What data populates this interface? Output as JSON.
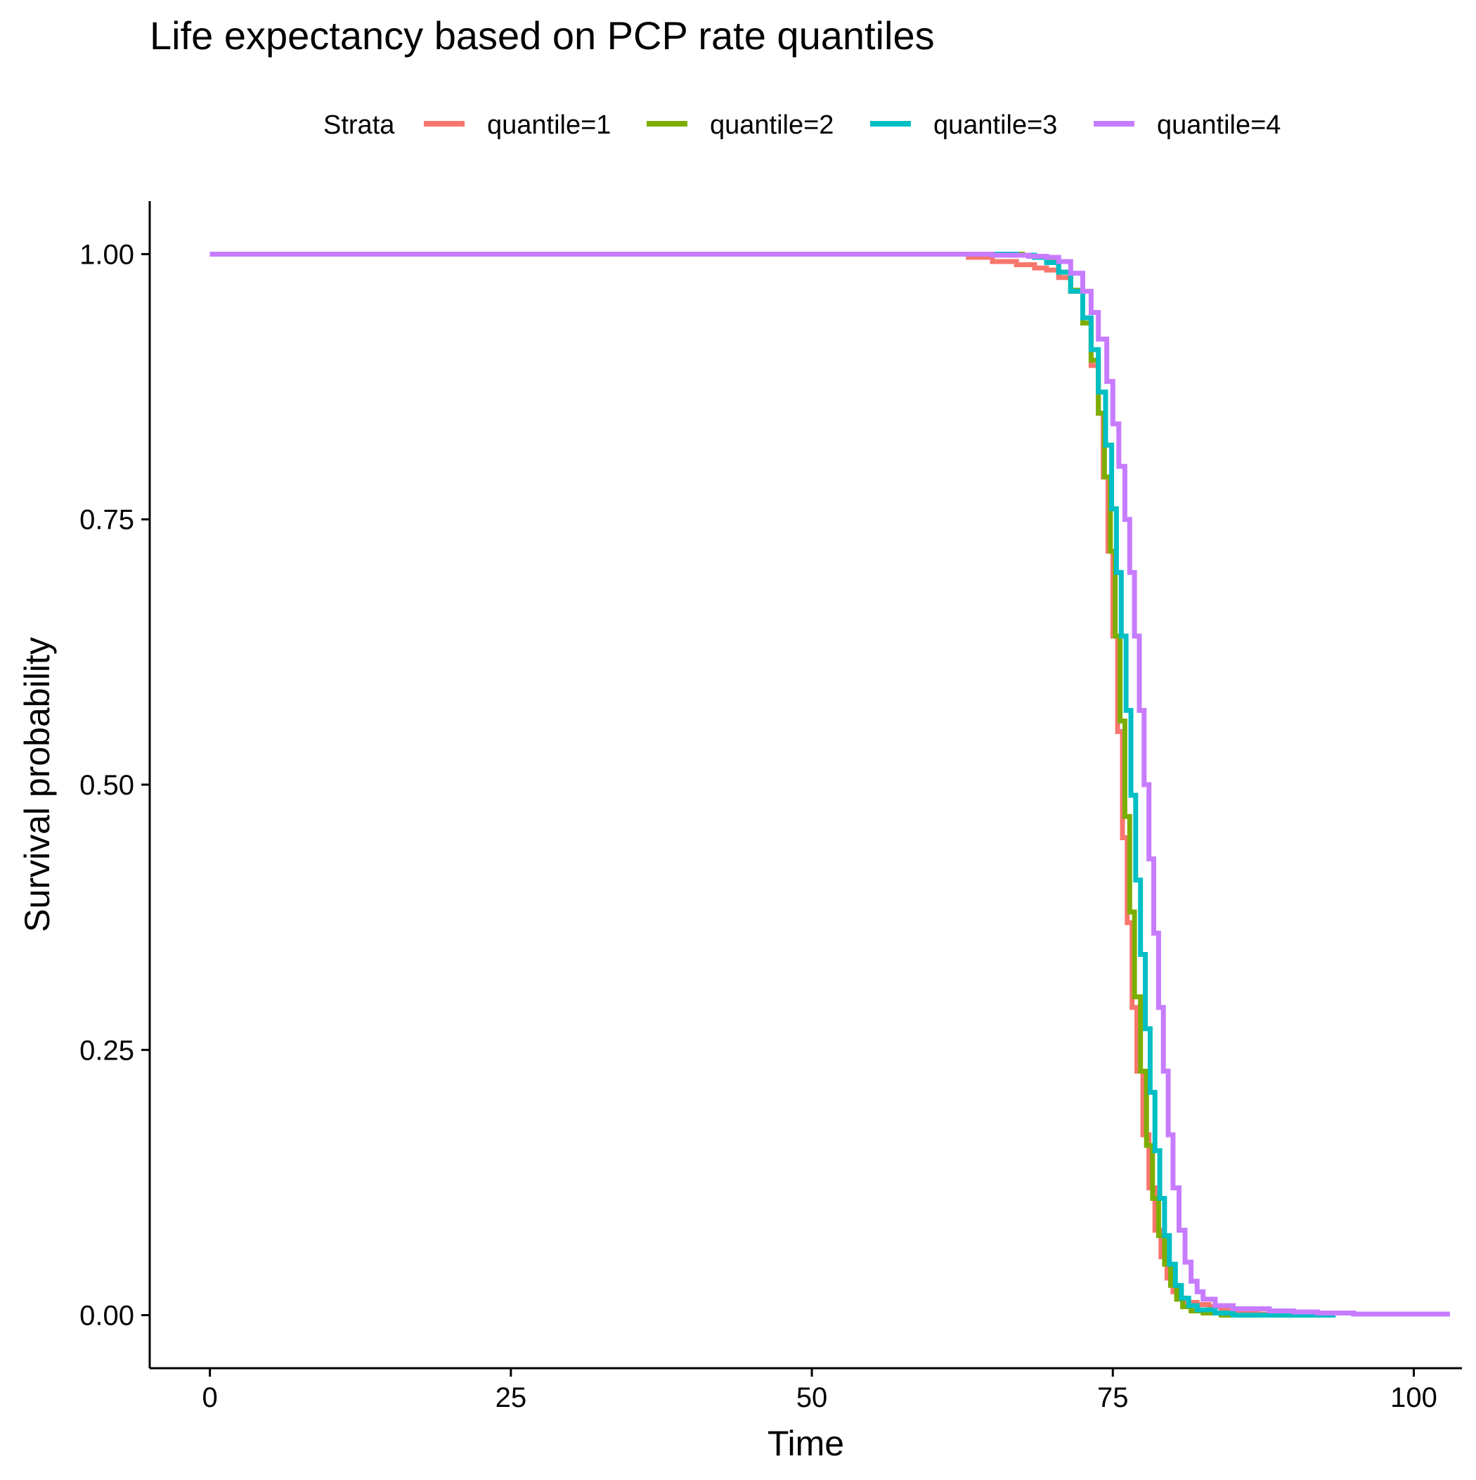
{
  "chart_data": {
    "type": "line",
    "title": "Life expectancy based on PCP rate quantiles",
    "xlabel": "Time",
    "ylabel": "Survival probability",
    "xlim": [
      -5,
      104
    ],
    "ylim": [
      -0.05,
      1.05
    ],
    "x_ticks": [
      "0",
      "25",
      "50",
      "75",
      "100"
    ],
    "x_tick_values": [
      0,
      25,
      50,
      75,
      100
    ],
    "y_ticks": [
      "0.00",
      "0.25",
      "0.50",
      "0.75",
      "1.00"
    ],
    "y_tick_values": [
      0,
      0.25,
      0.5,
      0.75,
      1.0
    ],
    "grid": false,
    "legend": {
      "title": "Strata",
      "position": "top"
    },
    "series": [
      {
        "name": "quantile=1",
        "color": "#F8766D",
        "points": [
          [
            0,
            1.0
          ],
          [
            61,
            1.0
          ],
          [
            63,
            0.997
          ],
          [
            65,
            0.993
          ],
          [
            67,
            0.99
          ],
          [
            68.5,
            0.987
          ],
          [
            69.5,
            0.985
          ],
          [
            70.5,
            0.978
          ],
          [
            71.5,
            0.965
          ],
          [
            72.5,
            0.935
          ],
          [
            73.2,
            0.895
          ],
          [
            73.8,
            0.85
          ],
          [
            74.2,
            0.79
          ],
          [
            74.6,
            0.72
          ],
          [
            75,
            0.64
          ],
          [
            75.4,
            0.55
          ],
          [
            75.8,
            0.45
          ],
          [
            76.2,
            0.37
          ],
          [
            76.6,
            0.29
          ],
          [
            77,
            0.23
          ],
          [
            77.5,
            0.17
          ],
          [
            78,
            0.12
          ],
          [
            78.5,
            0.08
          ],
          [
            79,
            0.055
          ],
          [
            79.5,
            0.035
          ],
          [
            80,
            0.022
          ],
          [
            80.5,
            0.016
          ],
          [
            81,
            0.012
          ],
          [
            82,
            0.01
          ],
          [
            83,
            0.008
          ],
          [
            84,
            0.005
          ],
          [
            85,
            0.003
          ],
          [
            87,
            0.001
          ],
          [
            90,
            0.0
          ],
          [
            93.5,
            0.0
          ]
        ]
      },
      {
        "name": "quantile=2",
        "color": "#7CAE00",
        "points": [
          [
            0,
            1.0
          ],
          [
            66,
            1.0
          ],
          [
            67.5,
            0.999
          ],
          [
            68.5,
            0.997
          ],
          [
            69.5,
            0.993
          ],
          [
            70.5,
            0.983
          ],
          [
            71.5,
            0.966
          ],
          [
            72.5,
            0.935
          ],
          [
            73.2,
            0.9
          ],
          [
            73.8,
            0.85
          ],
          [
            74.3,
            0.79
          ],
          [
            74.8,
            0.72
          ],
          [
            75.2,
            0.64
          ],
          [
            75.6,
            0.56
          ],
          [
            76,
            0.47
          ],
          [
            76.4,
            0.38
          ],
          [
            76.8,
            0.3
          ],
          [
            77.3,
            0.23
          ],
          [
            77.8,
            0.16
          ],
          [
            78.3,
            0.11
          ],
          [
            78.8,
            0.075
          ],
          [
            79.3,
            0.048
          ],
          [
            79.8,
            0.028
          ],
          [
            80.3,
            0.015
          ],
          [
            80.8,
            0.008
          ],
          [
            81.5,
            0.004
          ],
          [
            82.5,
            0.002
          ],
          [
            84,
            0.0
          ],
          [
            86,
            0.0
          ]
        ]
      },
      {
        "name": "quantile=3",
        "color": "#00BFC4",
        "points": [
          [
            0,
            1.0
          ],
          [
            65,
            1.0
          ],
          [
            67,
            0.999
          ],
          [
            68.5,
            0.997
          ],
          [
            69.5,
            0.992
          ],
          [
            70.5,
            0.983
          ],
          [
            71.5,
            0.965
          ],
          [
            72.5,
            0.94
          ],
          [
            73.2,
            0.91
          ],
          [
            73.8,
            0.87
          ],
          [
            74.4,
            0.82
          ],
          [
            74.9,
            0.76
          ],
          [
            75.3,
            0.7
          ],
          [
            75.7,
            0.64
          ],
          [
            76.1,
            0.57
          ],
          [
            76.5,
            0.49
          ],
          [
            76.9,
            0.41
          ],
          [
            77.3,
            0.34
          ],
          [
            77.7,
            0.27
          ],
          [
            78.1,
            0.21
          ],
          [
            78.5,
            0.155
          ],
          [
            78.9,
            0.11
          ],
          [
            79.3,
            0.075
          ],
          [
            79.7,
            0.048
          ],
          [
            80.2,
            0.028
          ],
          [
            80.7,
            0.016
          ],
          [
            81.3,
            0.009
          ],
          [
            82,
            0.005
          ],
          [
            83.5,
            0.002
          ],
          [
            85,
            0.0
          ],
          [
            93.5,
            0.0
          ]
        ]
      },
      {
        "name": "quantile=4",
        "color": "#C77CFF",
        "points": [
          [
            0,
            1.0
          ],
          [
            60,
            1.0
          ],
          [
            65,
            0.999
          ],
          [
            68,
            0.998
          ],
          [
            69.5,
            0.997
          ],
          [
            70.5,
            0.993
          ],
          [
            71.5,
            0.982
          ],
          [
            72.5,
            0.965
          ],
          [
            73.2,
            0.945
          ],
          [
            73.8,
            0.92
          ],
          [
            74.5,
            0.88
          ],
          [
            75,
            0.84
          ],
          [
            75.5,
            0.8
          ],
          [
            76,
            0.75
          ],
          [
            76.4,
            0.7
          ],
          [
            76.8,
            0.64
          ],
          [
            77.2,
            0.57
          ],
          [
            77.6,
            0.5
          ],
          [
            78,
            0.43
          ],
          [
            78.4,
            0.36
          ],
          [
            78.8,
            0.29
          ],
          [
            79.2,
            0.23
          ],
          [
            79.6,
            0.17
          ],
          [
            80,
            0.12
          ],
          [
            80.5,
            0.08
          ],
          [
            81,
            0.05
          ],
          [
            81.5,
            0.032
          ],
          [
            82,
            0.022
          ],
          [
            82.5,
            0.015
          ],
          [
            83.5,
            0.009
          ],
          [
            85,
            0.006
          ],
          [
            88,
            0.004
          ],
          [
            90,
            0.003
          ],
          [
            92,
            0.002
          ],
          [
            95,
            0.001
          ],
          [
            103,
            0.001
          ]
        ]
      }
    ]
  }
}
